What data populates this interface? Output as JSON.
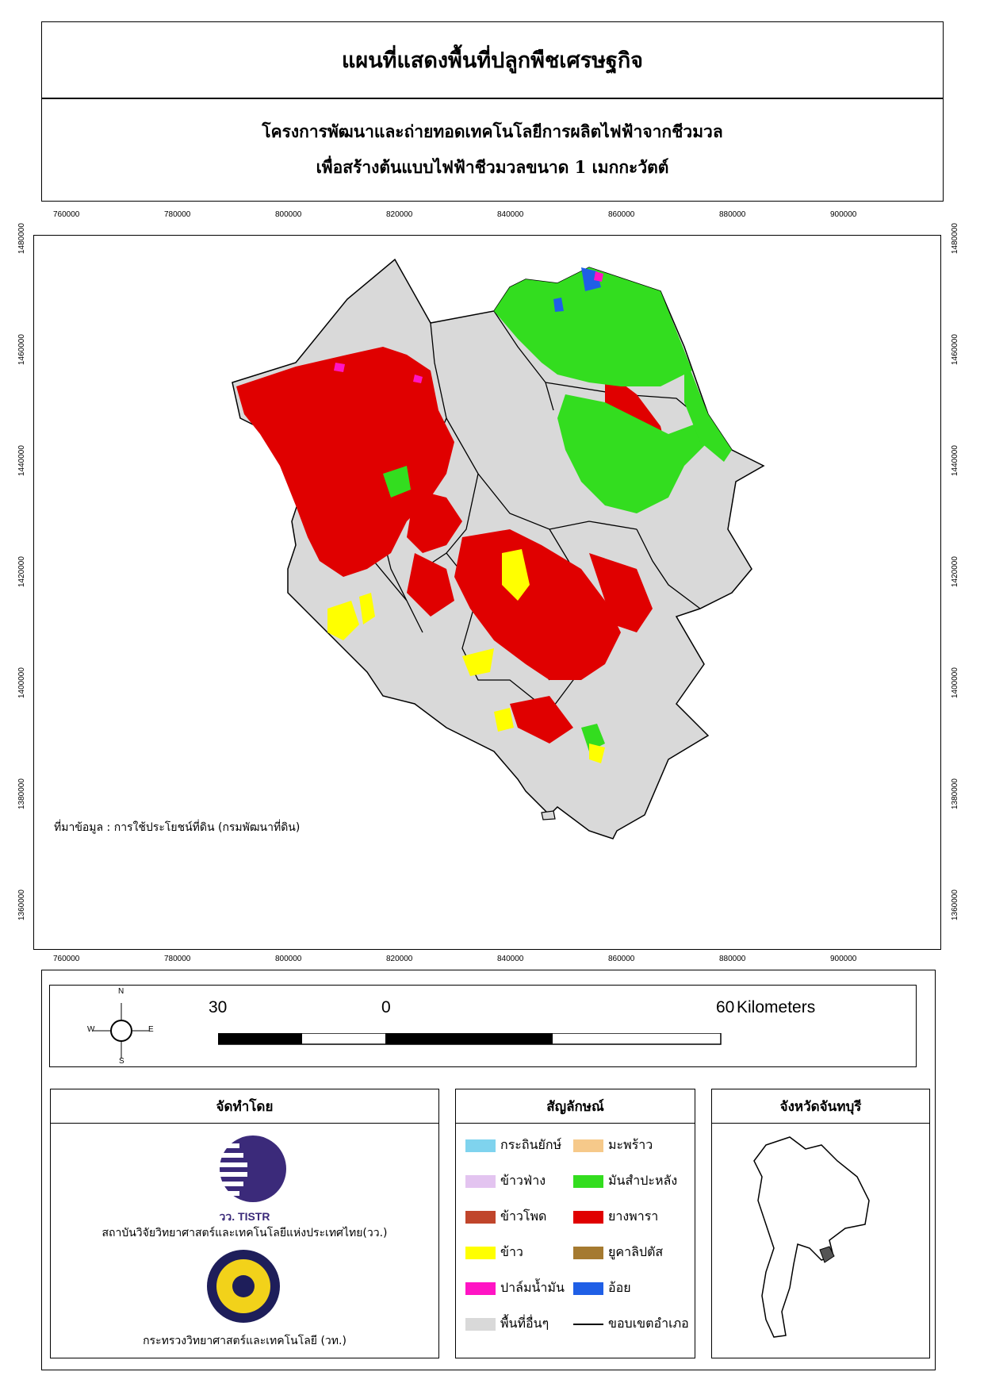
{
  "header": {
    "title": "แผนที่แสดงพื้นที่ปลูกพืชเศรษฐกิจ",
    "subtitle_line1": "โครงการพัฒนาและถ่ายทอดเทคโนโลยีการผลิตไฟฟ้าจากชีวมวล",
    "subtitle_line2": "เพื่อสร้างต้นแบบไฟฟ้าชีวมวลขนาด 1 เมกกะวัตต์"
  },
  "grid": {
    "x_ticks": [
      "760000",
      "780000",
      "800000",
      "820000",
      "840000",
      "860000",
      "880000",
      "900000"
    ],
    "y_ticks": [
      "1480000",
      "1460000",
      "1440000",
      "1420000",
      "1400000",
      "1380000",
      "1360000"
    ]
  },
  "map": {
    "source": "ที่มาข้อมูล : การใช้ประโยชน์ที่ดิน  (กรมพัฒนาที่ดิน)"
  },
  "compass": {
    "n": "N",
    "s": "S",
    "e": "E",
    "w": "W"
  },
  "scale_bar": {
    "label_left": "30",
    "label_mid": "0",
    "label_right": "60",
    "unit": "Kilometers"
  },
  "organization": {
    "heading": "จัดทำโดย",
    "logo1_text": "วว. TISTR",
    "org1": "สถาบันวิจัยวิทยาศาสตร์และเทคโนโลยีแห่งประเทศไทย(วว.)",
    "org2": "กระทรวงวิทยาศาสตร์และเทคโนโลยี (วท.)"
  },
  "legend": {
    "heading": "สัญลักษณ์",
    "items": [
      {
        "label": "กระถินยักษ์",
        "color": "#7fd3ee"
      },
      {
        "label": "มะพร้าว",
        "color": "#f6c98a"
      },
      {
        "label": "ข้าวฟ่าง",
        "color": "#e3c4f0"
      },
      {
        "label": "มันสำปะหลัง",
        "color": "#33dd1f"
      },
      {
        "label": "ข้าวโพด",
        "color": "#c0452b"
      },
      {
        "label": "ยางพารา",
        "color": "#e00000"
      },
      {
        "label": "ข้าว",
        "color": "#ffff00"
      },
      {
        "label": "ยูคาลิปตัส",
        "color": "#a57a30"
      },
      {
        "label": "ปาล์มน้ำมัน",
        "color": "#ff14c4"
      },
      {
        "label": "อ้อย",
        "color": "#1f5fe6"
      },
      {
        "label": "พื้นที่อื่นๆ",
        "color": "#d9d9d9"
      },
      {
        "label": "ขอบเขตอำเภอ",
        "color": "#000000"
      }
    ]
  },
  "locator": {
    "heading": "จังหวัดจันทบุรี"
  }
}
